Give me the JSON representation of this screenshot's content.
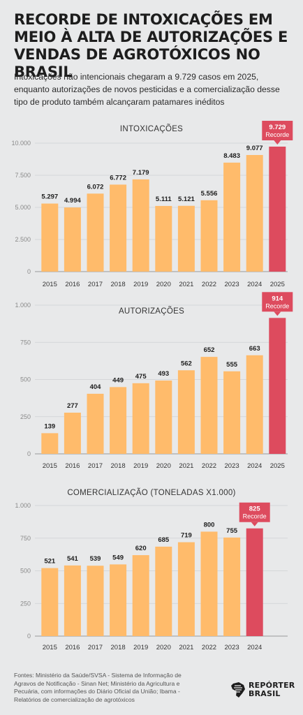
{
  "header": {
    "title": "RECORDE DE INTOXICAÇÕES EM MEIO À ALTA DE AUTORIZAÇÕES E VENDAS DE AGROTÓXICOS NO BRASIL",
    "subtitle": "Intoxicações não intencionais chegaram a 9.729 casos em 2025, enquanto autorizações de novos pesticidas e a comercialização desse tipo de produto também alcançaram patamares inéditos"
  },
  "colors": {
    "bar": "#ffbb6b",
    "record_bar": "#dd4b5e",
    "background": "#e8e9ea",
    "axis": "#999999"
  },
  "chart_data": [
    {
      "type": "bar",
      "title": "INTOXICAÇÕES",
      "categories": [
        "2015",
        "2016",
        "2017",
        "2018",
        "2019",
        "2020",
        "2021",
        "2022",
        "2023",
        "2024",
        "2025"
      ],
      "values": [
        5297,
        4994,
        6072,
        6772,
        7179,
        5111,
        5121,
        5556,
        8483,
        9077,
        9729
      ],
      "value_labels": [
        "5.297",
        "4.994",
        "6.072",
        "6.772",
        "7.179",
        "5.111",
        "5.121",
        "5.556",
        "8.483",
        "9.077",
        "9.729"
      ],
      "yticks": [
        0,
        2500,
        5000,
        7500,
        10000
      ],
      "ytick_labels": [
        "0",
        "2.500",
        "5.000",
        "7.500",
        "10.000"
      ],
      "ylim": [
        0,
        10000
      ],
      "record_index": 10,
      "record_label": "Recorde"
    },
    {
      "type": "bar",
      "title": "AUTORIZAÇÕES",
      "categories": [
        "2015",
        "2016",
        "2017",
        "2018",
        "2019",
        "2020",
        "2021",
        "2022",
        "2023",
        "2024",
        "2025"
      ],
      "values": [
        139,
        277,
        404,
        449,
        475,
        493,
        562,
        652,
        555,
        663,
        914
      ],
      "value_labels": [
        "139",
        "277",
        "404",
        "449",
        "475",
        "493",
        "562",
        "652",
        "555",
        "663",
        "914"
      ],
      "yticks": [
        0,
        250,
        500,
        750,
        1000
      ],
      "ytick_labels": [
        "0",
        "250",
        "500",
        "750",
        "1.000"
      ],
      "ylim": [
        0,
        1000
      ],
      "record_index": 10,
      "record_label": "Recorde"
    },
    {
      "type": "bar",
      "title": "COMERCIALIZAÇÃO (TONELADAS X1.000)",
      "categories": [
        "2015",
        "2016",
        "2017",
        "2018",
        "2019",
        "2020",
        "2021",
        "2022",
        "2023",
        "2024"
      ],
      "values": [
        521,
        541,
        539,
        549,
        620,
        685,
        719,
        800,
        755,
        825
      ],
      "value_labels": [
        "521",
        "541",
        "539",
        "549",
        "620",
        "685",
        "719",
        "800",
        "755",
        "825"
      ],
      "yticks": [
        0,
        250,
        500,
        750,
        1000
      ],
      "ytick_labels": [
        "0",
        "250",
        "500",
        "750",
        "1.000"
      ],
      "ylim": [
        0,
        1000
      ],
      "record_index": 9,
      "record_label": "Recorde"
    }
  ],
  "footer": {
    "sources": "Fontes: Ministério da Saúde/SVSA - Sistema de Informação de Agravos de Notificação - Sinan Net; Ministério da Agricultura e Pecuária, com informações do Diário Oficial da União; Ibama - Relatórios de comercialização de agrotóxicos",
    "logo_line1": "REPÓRTER",
    "logo_line2": "BRASIL"
  }
}
